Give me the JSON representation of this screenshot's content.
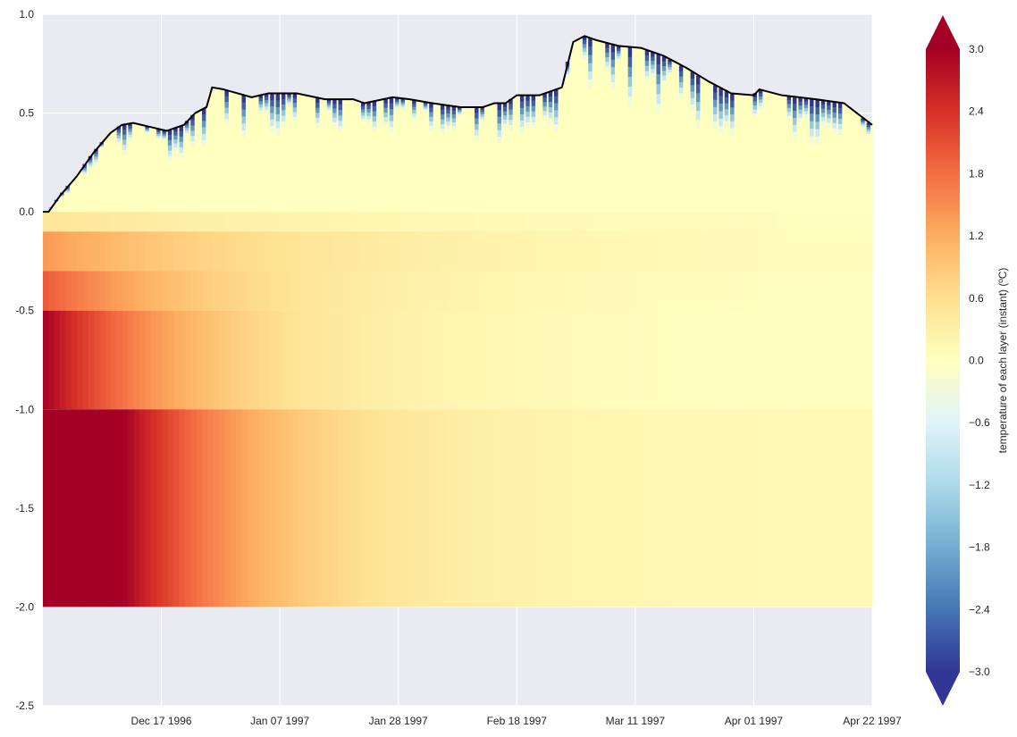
{
  "chart_data": {
    "type": "heatmap",
    "title": "",
    "xlabel": "",
    "ylabel": "",
    "x_ticks": [
      "Dec 17 1996",
      "Jan 07 1997",
      "Jan 28 1997",
      "Feb 18 1997",
      "Mar 11 1997",
      "Apr 01 1997",
      "Apr 22 1997"
    ],
    "x_tick_dates": [
      "1996-12-17",
      "1997-01-07",
      "1997-01-28",
      "1997-02-18",
      "1997-03-11",
      "1997-04-01",
      "1997-04-22"
    ],
    "x_range": [
      "1996-11-26",
      "1997-04-22"
    ],
    "y_ticks": [
      "1.0",
      "0.5",
      "0.0",
      "-0.5",
      "-1.0",
      "-1.5",
      "-2.0",
      "-2.5"
    ],
    "y_tick_values": [
      1.0,
      0.5,
      0.0,
      -0.5,
      -1.0,
      -1.5,
      -2.0,
      -2.5
    ],
    "ylim": [
      -2.5,
      1.0
    ],
    "grid": true,
    "colorbar": {
      "label": "temperature of each layer (instant) (ºC)",
      "ticks": [
        "3.0",
        "2.4",
        "1.8",
        "1.2",
        "0.6",
        "0.0",
        "−0.6",
        "−1.2",
        "−1.8",
        "−2.4",
        "−3.0"
      ],
      "tick_values": [
        3.0,
        2.4,
        1.8,
        1.2,
        0.6,
        0.0,
        -0.6,
        -1.2,
        -1.8,
        -2.4,
        -3.0
      ],
      "range": [
        -3.0,
        3.0
      ],
      "extend": "both",
      "colormap": "RdYlBu_r"
    },
    "soil_layers": [
      {
        "top": 0.0,
        "bottom": -0.1,
        "initial_temp": 0.5
      },
      {
        "top": -0.1,
        "bottom": -0.3,
        "initial_temp": 1.4
      },
      {
        "top": -0.3,
        "bottom": -0.5,
        "initial_temp": 2.0
      },
      {
        "top": -0.5,
        "bottom": -1.0,
        "initial_temp": 3.0
      },
      {
        "top": -1.0,
        "bottom": -2.0,
        "initial_temp": 3.2
      }
    ],
    "snow_depth": {
      "name": "",
      "x": [
        "1996-11-26",
        "1996-11-27",
        "1996-11-28",
        "1996-11-29",
        "1996-12-02",
        "1996-12-05",
        "1996-12-08",
        "1996-12-10",
        "1996-12-12",
        "1996-12-15",
        "1996-12-18",
        "1996-12-21",
        "1996-12-23",
        "1996-12-25",
        "1996-12-26",
        "1996-12-28",
        "1997-01-02",
        "1997-01-05",
        "1997-01-10",
        "1997-01-15",
        "1997-01-20",
        "1997-01-22",
        "1997-01-27",
        "1997-01-30",
        "1997-02-03",
        "1997-02-08",
        "1997-02-12",
        "1997-02-14",
        "1997-02-16",
        "1997-02-18",
        "1997-02-22",
        "1997-02-26",
        "1997-02-28",
        "1997-03-02",
        "1997-03-04",
        "1997-03-08",
        "1997-03-12",
        "1997-03-16",
        "1997-03-20",
        "1997-03-24",
        "1997-03-28",
        "1997-04-01",
        "1997-04-02",
        "1997-04-06",
        "1997-04-12",
        "1997-04-17",
        "1997-04-22"
      ],
      "values": [
        0.0,
        0.0,
        0.04,
        0.08,
        0.18,
        0.3,
        0.4,
        0.44,
        0.45,
        0.43,
        0.41,
        0.44,
        0.5,
        0.53,
        0.63,
        0.62,
        0.58,
        0.6,
        0.6,
        0.57,
        0.57,
        0.55,
        0.58,
        0.57,
        0.55,
        0.53,
        0.53,
        0.55,
        0.55,
        0.59,
        0.59,
        0.63,
        0.86,
        0.89,
        0.87,
        0.84,
        0.83,
        0.79,
        0.73,
        0.66,
        0.6,
        0.59,
        0.62,
        0.59,
        0.57,
        0.55,
        0.44
      ]
    }
  }
}
